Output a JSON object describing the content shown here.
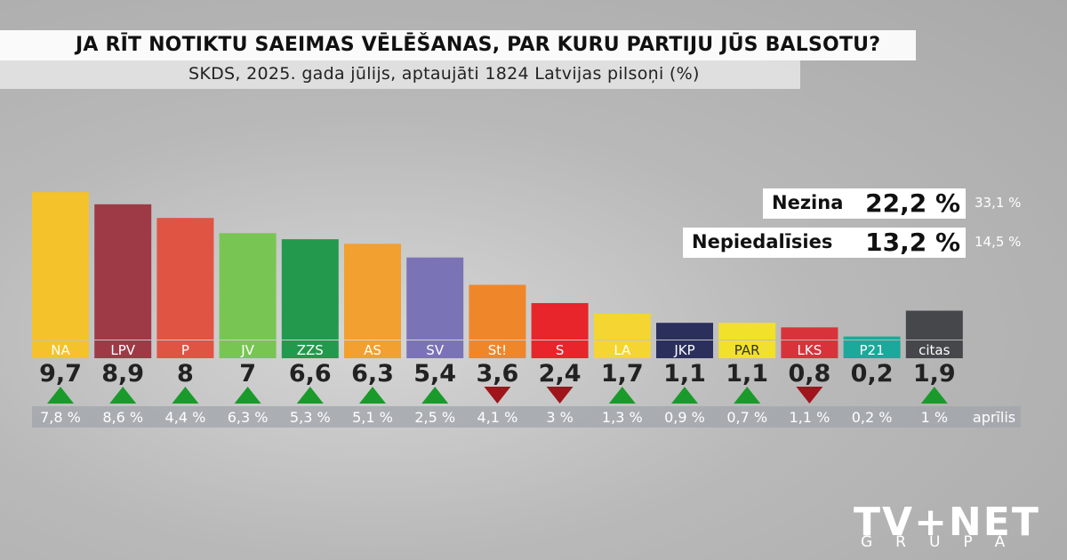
{
  "header": {
    "title": "JA RĪT NOTIKTU SAEIMAS VĒLĒŠANAS, PAR KURU PARTIJU JŪS BALSOTU?",
    "subtitle": "SKDS, 2025. gada jūlijs, aptaujāti 1824 Latvijas pilsoņi (%)"
  },
  "chart_data": {
    "type": "bar",
    "categories": [
      "NA",
      "LPV",
      "P",
      "JV",
      "ZZS",
      "AS",
      "SV",
      "St!",
      "S",
      "LA",
      "JKP",
      "PAR",
      "LKS",
      "P21",
      "citas"
    ],
    "values": [
      9.7,
      8.9,
      8,
      7,
      6.6,
      6.3,
      5.4,
      3.6,
      2.4,
      1.7,
      1.1,
      1.1,
      0.8,
      0.2,
      1.9
    ],
    "value_labels": [
      "9,7",
      "8,9",
      "8",
      "7",
      "6,6",
      "6,3",
      "5,4",
      "3,6",
      "2,4",
      "1,7",
      "1,1",
      "1,1",
      "0,8",
      "0,2",
      "1,9"
    ],
    "colors": [
      "#f4c22b",
      "#9e3a46",
      "#e05443",
      "#79c553",
      "#22994c",
      "#f2a02f",
      "#7a74b6",
      "#f0862a",
      "#e8252a",
      "#f5d531",
      "#2b2f5c",
      "#f2e12a",
      "#d8333a",
      "#1aa99a",
      "#45474a"
    ],
    "label_colors": [
      "#f4c22b",
      "#9e3a46",
      "#e05443",
      "#79c553",
      "#22994c",
      "#f2a02f",
      "#7a74b6",
      "#f0862a",
      "#e8252a",
      "#f5d531",
      "#2b2f5c",
      "#f2e12a",
      "#d8333a",
      "#1aa99a",
      "#45474a"
    ],
    "label_text_colors": [
      "#fff",
      "#fff",
      "#fff",
      "#fff",
      "#fff",
      "#fff",
      "#fff",
      "#fff",
      "#fff",
      "#fff",
      "#fff",
      "#333",
      "#fff",
      "#fff",
      "#fff"
    ],
    "trend": [
      "up",
      "up",
      "up",
      "up",
      "up",
      "up",
      "up",
      "down",
      "down",
      "up",
      "up",
      "up",
      "down",
      "none",
      "up"
    ],
    "previous_labels": [
      "7,8 %",
      "8,6 %",
      "4,4 %",
      "6,3 %",
      "5,3 %",
      "5,1 %",
      "2,5 %",
      "4,1 %",
      "3 %",
      "1,3 %",
      "0,9 %",
      "0,7 %",
      "1,1 %",
      "0,2 %",
      "1 %"
    ],
    "previous_period": "aprīlis",
    "up_color": "#1a9a2a",
    "down_color": "#a0141b"
  },
  "side_boxes": [
    {
      "label": "Nezina",
      "value": "22,2 %",
      "previous": "33,1 %"
    },
    {
      "label": "Nepiedalīsies",
      "value": "13,2 %",
      "previous": "14,5 %"
    }
  ],
  "logo": {
    "main": "TV+NET",
    "sub": "GRUPA"
  }
}
